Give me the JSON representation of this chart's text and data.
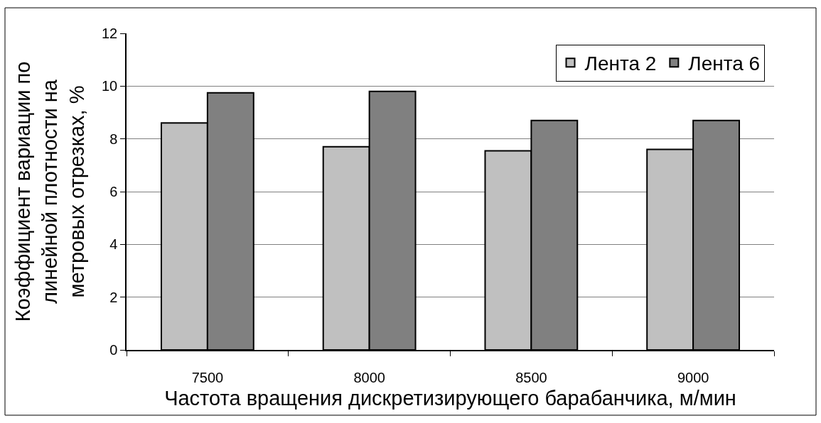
{
  "chart_data": {
    "type": "bar",
    "xlabel": "Частота вращения дискретизирующего барабанчика, м/мин",
    "ylabel": "Коэффициент вариации по линейной плотности на метровых отрезках, %",
    "categories": [
      "7500",
      "8000",
      "8500",
      "9000"
    ],
    "series": [
      {
        "name": "Лента 2",
        "color": "#c0c0c0",
        "values": [
          8.6,
          7.7,
          7.55,
          7.6
        ]
      },
      {
        "name": "Лента 6",
        "color": "#808080",
        "values": [
          9.75,
          9.8,
          8.7,
          8.7
        ]
      }
    ],
    "ylim": [
      0,
      12
    ],
    "yticks": [
      0,
      2,
      4,
      6,
      8,
      10,
      12
    ],
    "grid": "y",
    "legend": "top right"
  }
}
